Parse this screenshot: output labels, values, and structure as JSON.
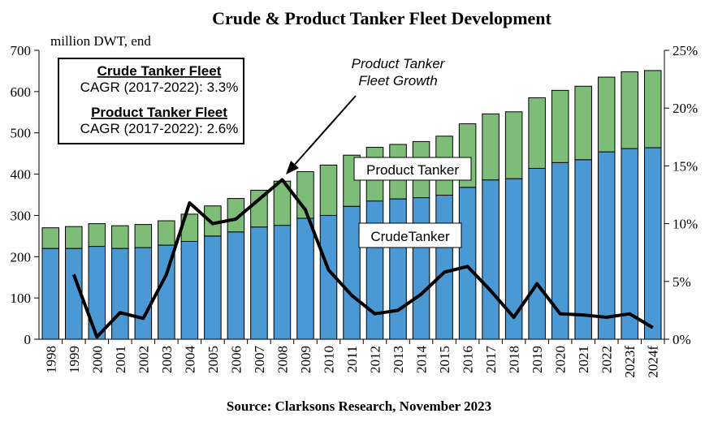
{
  "chart_data": {
    "type": "bar",
    "title": "Crude & Product Tanker Fleet Development",
    "y_label": "million DWT, end",
    "source": "Source: Clarksons Research, November 2023",
    "stacked": true,
    "categories": [
      "1998",
      "1999",
      "2000",
      "2001",
      "2002",
      "2003",
      "2004",
      "2005",
      "2006",
      "2007",
      "2008",
      "2009",
      "2010",
      "2011",
      "2012",
      "2013",
      "2014",
      "2015",
      "2016",
      "2017",
      "2018",
      "2019",
      "2020",
      "2021",
      "2022",
      "2023f",
      "2024f"
    ],
    "series": [
      {
        "name": "CrudeTanker",
        "color": "#4a98d4",
        "values": [
          220,
          220,
          225,
          220,
          222,
          228,
          237,
          250,
          260,
          272,
          276,
          293,
          300,
          322,
          335,
          340,
          343,
          349,
          368,
          386,
          389,
          414,
          428,
          435,
          454,
          462,
          464
        ]
      },
      {
        "name": "Product Tanker",
        "color": "#7dbd78",
        "values": [
          50,
          53,
          55,
          55,
          56,
          59,
          66,
          73,
          81,
          89,
          107,
          113,
          122,
          124,
          130,
          132,
          136,
          143,
          154,
          160,
          162,
          171,
          175,
          178,
          181,
          186,
          187
        ]
      },
      {
        "type": "line",
        "axis": "y2",
        "color": "#000000",
        "values": [
          null,
          5.6,
          0.2,
          2.3,
          1.8,
          5.6,
          11.8,
          10.0,
          10.4,
          12.1,
          13.8,
          11.2,
          6.0,
          3.8,
          2.2,
          2.5,
          3.9,
          5.8,
          6.3,
          4.2,
          1.9,
          4.8,
          2.2,
          2.1,
          1.9,
          2.2,
          1.0
        ]
      }
    ],
    "ylim": [
      0,
      700
    ],
    "yticks": [
      0,
      100,
      200,
      300,
      400,
      500,
      600,
      700
    ],
    "y2lim": [
      0,
      25
    ],
    "y2ticks": [
      {
        "value": 0,
        "label": "0%"
      },
      {
        "value": 5,
        "label": "5%"
      },
      {
        "value": 10,
        "label": "10%"
      },
      {
        "value": 15,
        "label": "15%"
      },
      {
        "value": 20,
        "label": "20%"
      },
      {
        "value": 25,
        "label": "25%"
      }
    ],
    "info_box": [
      "Crude Tanker Fleet",
      "CAGR (2017-2022): 3.3%",
      "Product Tanker Fleet",
      "CAGR (2017-2022): 2.6%"
    ],
    "growth_annotation": [
      "Product Tanker",
      "Fleet Growth"
    ]
  }
}
